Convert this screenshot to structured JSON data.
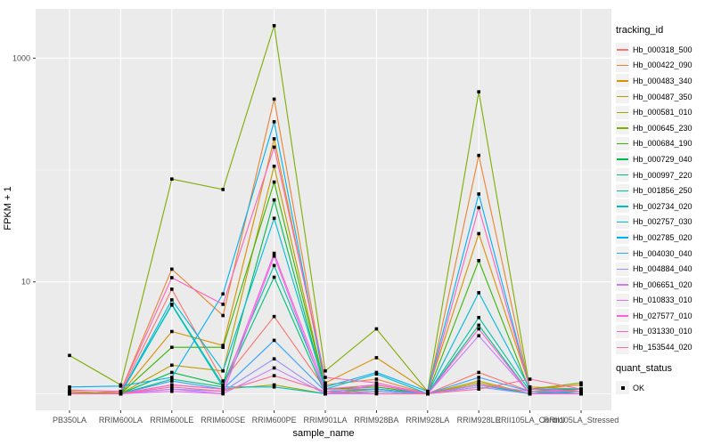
{
  "chart_data": {
    "type": "line",
    "title": "",
    "xlabel": "sample_name",
    "ylabel": "FPKM + 1",
    "yscale": "log10",
    "ylim": [
      0.71,
      2750
    ],
    "y_log_domain": [
      -0.148,
      3.44
    ],
    "y_major_breaks": [
      10,
      1000
    ],
    "y_minor_breaks": [
      1,
      100
    ],
    "grid": "on",
    "legend_position": "right",
    "point_color": "#000000",
    "panel_bg": "#EBEBEB",
    "grid_color": "#FFFFFF",
    "tick_label_color": "#4D4D4D",
    "categories": [
      "PB350LA",
      "RRIM600LA",
      "RRIM600LE",
      "RRIM600SE",
      "RRIM600PE",
      "RRIM901LA",
      "RRIM928BA",
      "RRIM928LA",
      "RRIM928LE",
      "RRII105LA_Control",
      "RRII105LA_Stressed"
    ],
    "series": [
      {
        "name": "Hb_000318_500",
        "color": "#F8766D",
        "values": [
          1.02,
          1.02,
          8.6,
          1.3,
          4.9,
          1.1,
          1.1,
          1.0,
          1.55,
          1.05,
          1.05
        ]
      },
      {
        "name": "Hb_000422_090",
        "color": "#EA8331",
        "values": [
          1.0,
          1.05,
          13,
          5.0,
          430,
          1.2,
          1.35,
          1.0,
          135,
          1.1,
          1.2
        ]
      },
      {
        "name": "Hb_000483_340",
        "color": "#D89000",
        "values": [
          1.0,
          1.0,
          3.6,
          2.7,
          190,
          1.25,
          2.1,
          1.05,
          27,
          1.15,
          1.1
        ]
      },
      {
        "name": "Hb_000487_350",
        "color": "#C09B00",
        "values": [
          1.0,
          1.0,
          1.8,
          1.6,
          108,
          1.1,
          1.2,
          1.0,
          1.3,
          1.0,
          1.05
        ]
      },
      {
        "name": "Hb_000581_010",
        "color": "#A3A500",
        "values": [
          1.05,
          1.0,
          1.2,
          1.1,
          1.2,
          1.0,
          1.1,
          1.0,
          1.25,
          1.0,
          1.1
        ]
      },
      {
        "name": "Hb_000645_230",
        "color": "#7CAE00",
        "values": [
          2.2,
          1.2,
          83,
          67,
          1950,
          1.6,
          3.8,
          1.05,
          500,
          1.1,
          1.25
        ]
      },
      {
        "name": "Hb_000684_190",
        "color": "#39B600",
        "values": [
          1.0,
          1.0,
          2.6,
          2.6,
          78,
          1.1,
          1.15,
          1.0,
          15.5,
          1.05,
          1.1
        ]
      },
      {
        "name": "Hb_000729_040",
        "color": "#00BB4E",
        "values": [
          1.0,
          1.0,
          1.55,
          1.2,
          54,
          1.05,
          1.1,
          1.0,
          1.2,
          1.0,
          1.0
        ]
      },
      {
        "name": "Hb_000997_220",
        "color": "#00BF7D",
        "values": [
          1.0,
          1.0,
          1.35,
          1.15,
          11,
          1.0,
          1.05,
          1.0,
          4.1,
          1.0,
          1.05
        ]
      },
      {
        "name": "Hb_001856_250",
        "color": "#00C1A3",
        "values": [
          1.0,
          1.0,
          6.3,
          1.2,
          14,
          1.05,
          1.1,
          1.0,
          4.8,
          1.05,
          1.0
        ]
      },
      {
        "name": "Hb_002734_020",
        "color": "#00BFC4",
        "values": [
          1.0,
          1.0,
          6.2,
          1.15,
          1.15,
          1.0,
          1.05,
          1.0,
          1.2,
          1.0,
          1.0
        ]
      },
      {
        "name": "Hb_002757_030",
        "color": "#00BBDA",
        "values": [
          1.0,
          1.0,
          6.9,
          1.6,
          37,
          1.1,
          1.5,
          1.0,
          8.0,
          1.1,
          1.05
        ]
      },
      {
        "name": "Hb_002785_020",
        "color": "#00B0F6",
        "values": [
          1.15,
          1.17,
          1.4,
          7.8,
          270,
          1.15,
          1.55,
          1.05,
          61,
          1.1,
          1.1
        ]
      },
      {
        "name": "Hb_004030_040",
        "color": "#35A2FF",
        "values": [
          1.0,
          1.0,
          1.3,
          1.1,
          3.0,
          1.05,
          1.1,
          1.0,
          1.4,
          1.05,
          1.0
        ]
      },
      {
        "name": "Hb_004884_040",
        "color": "#9590FF",
        "values": [
          1.0,
          1.0,
          1.1,
          1.05,
          2.05,
          1.0,
          1.05,
          1.0,
          1.15,
          1.0,
          1.0
        ]
      },
      {
        "name": "Hb_006651_020",
        "color": "#C77CFF",
        "values": [
          1.0,
          1.0,
          1.1,
          1.0,
          1.7,
          1.0,
          1.0,
          1.0,
          3.3,
          1.0,
          1.0
        ]
      },
      {
        "name": "Hb_010833_010",
        "color": "#E76BF3",
        "values": [
          1.0,
          1.0,
          1.05,
          1.0,
          17,
          1.0,
          1.2,
          1.0,
          1.2,
          1.05,
          1.05
        ]
      },
      {
        "name": "Hb_027577_010",
        "color": "#FA62DB",
        "values": [
          1.0,
          1.0,
          1.2,
          1.1,
          18,
          1.1,
          1.2,
          1.0,
          3.8,
          1.0,
          1.0
        ]
      },
      {
        "name": "Hb_031330_010",
        "color": "#FF62BC",
        "values": [
          1.08,
          1.05,
          10.9,
          6.3,
          160,
          1.4,
          1.25,
          1.0,
          46,
          1.1,
          1.05
        ]
      },
      {
        "name": "Hb_153544_020",
        "color": "#FF6A98",
        "values": [
          1.0,
          1.0,
          1.15,
          1.05,
          1.45,
          1.05,
          1.0,
          1.0,
          1.1,
          1.35,
          1.1
        ]
      }
    ],
    "legend": {
      "color_title": "tracking_id",
      "shape_title": "quant_status",
      "shape_items": [
        {
          "label": "OK"
        }
      ]
    }
  }
}
